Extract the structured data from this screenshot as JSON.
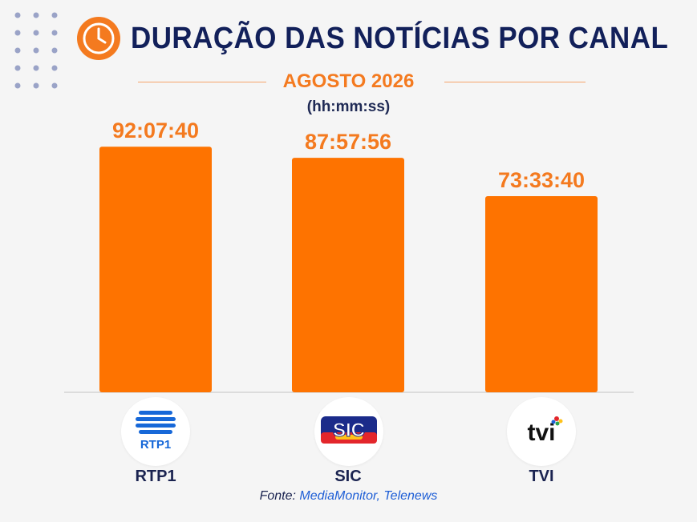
{
  "header": {
    "title": "DURAÇÃO DAS NOTÍCIAS POR CANAL",
    "subtitle": "AGOSTO 2026",
    "unit": "(hh:mm:ss)"
  },
  "chart_data": {
    "type": "bar",
    "categories": [
      "RTP1",
      "SIC",
      "TVI"
    ],
    "values": [
      92.1278,
      87.9656,
      73.5611
    ],
    "data_labels": [
      "92:07:40",
      "87:57:56",
      "73:33:40"
    ],
    "ylim": [
      0,
      100
    ],
    "grid": false
  },
  "source": {
    "prefix": "Fonte: ",
    "sources": "MediaMonitor, Telenews"
  },
  "colors": {
    "bar": "#fe7300",
    "title": "#12205a",
    "accent": "#f47a1f",
    "source_link": "#1f5fd6"
  },
  "icons": [
    "clock-icon",
    "rtp1-logo",
    "sic-logo",
    "tvi-logo"
  ]
}
